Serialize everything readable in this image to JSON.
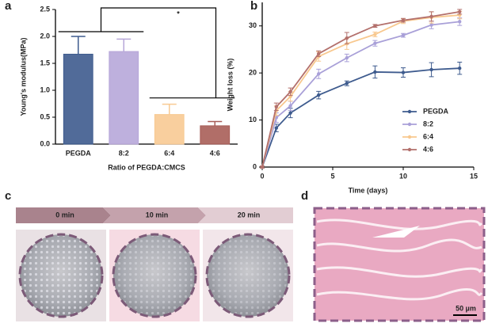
{
  "chart_data": [
    {
      "type": "bar",
      "panel": "a",
      "ylabel": "Young's modulus(MPa)",
      "xlabel": "Ratio of PEGDA:CMCS",
      "categories": [
        "PEGDA",
        "8:2",
        "6:4",
        "4:6"
      ],
      "values": [
        1.67,
        1.72,
        0.55,
        0.34
      ],
      "errors": [
        0.33,
        0.23,
        0.19,
        0.08
      ],
      "colors": [
        "#3e5b8e",
        "#b7a7d9",
        "#f8ca93",
        "#a85e58"
      ],
      "ylim": [
        0,
        2.5
      ],
      "yticks": [
        {
          "value": 0,
          "label": "0.0"
        },
        {
          "value": 0.5,
          "label": "0.5"
        },
        {
          "value": 1,
          "label": "1.0"
        },
        {
          "value": 1.5,
          "label": "1.5"
        },
        {
          "value": 2,
          "label": "2.0"
        },
        {
          "value": 2.5,
          "label": "2.5"
        }
      ],
      "annotations": [
        "*"
      ]
    },
    {
      "type": "line",
      "panel": "b",
      "ylabel": "Weight loss (%)",
      "xlabel": "Time (days)",
      "x": [
        0,
        1,
        2,
        4,
        6,
        8,
        10,
        12,
        14
      ],
      "series": [
        {
          "name": "PEGDA",
          "color": "#3e5b8e",
          "values": [
            0,
            8.3,
            11.5,
            15.3,
            17.8,
            20.2,
            20.1,
            20.7,
            21.0
          ],
          "errors": [
            0.2,
            0.8,
            1.0,
            0.8,
            0.5,
            1.3,
            1.0,
            1.5,
            1.3
          ]
        },
        {
          "name": "8:2",
          "color": "#a9a0d8",
          "values": [
            0,
            10.5,
            13.0,
            19.8,
            23.2,
            26.3,
            28.0,
            30.2,
            30.9
          ],
          "errors": [
            0.2,
            1.0,
            1.0,
            1.0,
            0.8,
            0.6,
            0.4,
            0.8,
            0.8
          ]
        },
        {
          "name": "6:4",
          "color": "#f8c88e",
          "values": [
            0,
            12.0,
            15.0,
            23.5,
            26.2,
            28.2,
            31.0,
            31.8,
            32.3
          ],
          "errors": [
            0.2,
            1.0,
            1.0,
            1.0,
            1.2,
            0.5,
            0.5,
            1.2,
            0.8
          ]
        },
        {
          "name": "4:6",
          "color": "#b3706c",
          "values": [
            0,
            12.8,
            16.0,
            24.1,
            27.4,
            30.0,
            31.2,
            32.0,
            33.0
          ],
          "errors": [
            0.2,
            0.8,
            0.8,
            0.6,
            1.2,
            0.3,
            0.4,
            1.0,
            0.5
          ]
        }
      ],
      "xlim": [
        0,
        15
      ],
      "xticks": [
        0,
        5,
        10,
        15
      ],
      "ylim": [
        0,
        35
      ],
      "yticks": [
        0,
        10,
        20,
        30
      ],
      "legend": "right"
    }
  ],
  "panels": {
    "c": {
      "letter": "c",
      "labels": [
        "0 min",
        "10 min",
        "20 min"
      ]
    },
    "d": {
      "letter": "d",
      "scale_bar": "50 µm"
    }
  }
}
